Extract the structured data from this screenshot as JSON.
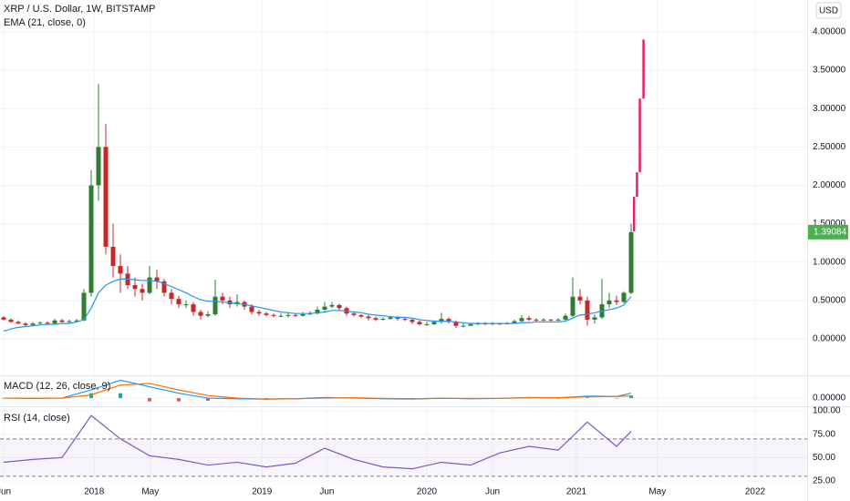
{
  "chart_data": {
    "type": "candlestick",
    "title": "XRP / U.S. Dollar, 1W, BITSTAMP",
    "currency_button": "USD",
    "xlim": [
      -0.5,
      110.125
    ],
    "xticks": [
      {
        "value": 0,
        "label": "Jun"
      },
      {
        "value": 12.4,
        "label": "2018"
      },
      {
        "value": 20.1,
        "label": "May"
      },
      {
        "value": 35.4,
        "label": "2019"
      },
      {
        "value": 44.3,
        "label": "Jun"
      },
      {
        "value": 58,
        "label": "2020"
      },
      {
        "value": 67,
        "label": "Jun"
      },
      {
        "value": 78.5,
        "label": "2021"
      },
      {
        "value": 89.6,
        "label": "May"
      },
      {
        "value": 103,
        "label": "2022"
      }
    ],
    "ylim": [
      -0.475,
      4.415
    ],
    "yticks": [
      {
        "value": 0,
        "label": "0.00000"
      },
      {
        "value": 0.5,
        "label": "0.50000"
      },
      {
        "value": 1,
        "label": "1.00000"
      },
      {
        "value": 1.5,
        "label": "1.50000"
      },
      {
        "value": 2,
        "label": "2.00000"
      },
      {
        "value": 2.5,
        "label": "2.50000"
      },
      {
        "value": 3,
        "label": "3.00000"
      },
      {
        "value": 3.5,
        "label": "3.50000"
      },
      {
        "value": 4,
        "label": "4.00000"
      }
    ],
    "grid": true,
    "up_color": "#2e7d32",
    "down_color": "#c62828",
    "open": [
      0.28,
      0.25,
      0.22,
      0.2,
      0.18,
      0.2,
      0.21,
      0.2,
      0.24,
      0.22,
      0.23,
      0.24,
      0.6,
      2.0,
      2.5,
      1.2,
      0.95,
      0.85,
      0.7,
      0.65,
      0.6,
      0.8,
      0.75,
      0.6,
      0.52,
      0.45,
      0.45,
      0.35,
      0.3,
      0.32,
      0.55,
      0.5,
      0.45,
      0.48,
      0.42,
      0.35,
      0.33,
      0.31,
      0.3,
      0.3,
      0.31,
      0.3,
      0.32,
      0.33,
      0.38,
      0.42,
      0.44,
      0.4,
      0.33,
      0.31,
      0.29,
      0.27,
      0.25,
      0.26,
      0.28,
      0.26,
      0.25,
      0.22,
      0.19,
      0.19,
      0.22,
      0.26,
      0.22,
      0.17,
      0.17,
      0.19,
      0.2,
      0.19,
      0.2,
      0.19,
      0.2,
      0.23,
      0.27,
      0.25,
      0.24,
      0.25,
      0.24,
      0.25,
      0.3,
      0.55,
      0.5,
      0.25,
      0.28,
      0.45,
      0.5,
      0.48,
      0.6
    ],
    "high": [
      0.3,
      0.27,
      0.24,
      0.22,
      0.22,
      0.23,
      0.23,
      0.26,
      0.26,
      0.25,
      0.26,
      0.65,
      2.2,
      3.32,
      2.8,
      1.5,
      1.1,
      0.95,
      0.8,
      0.72,
      0.95,
      0.9,
      0.78,
      0.65,
      0.56,
      0.5,
      0.48,
      0.38,
      0.36,
      0.77,
      0.6,
      0.55,
      0.58,
      0.5,
      0.45,
      0.38,
      0.35,
      0.33,
      0.33,
      0.34,
      0.33,
      0.35,
      0.36,
      0.42,
      0.48,
      0.48,
      0.46,
      0.42,
      0.35,
      0.32,
      0.31,
      0.29,
      0.28,
      0.3,
      0.3,
      0.28,
      0.27,
      0.24,
      0.22,
      0.24,
      0.34,
      0.28,
      0.24,
      0.2,
      0.21,
      0.22,
      0.22,
      0.22,
      0.21,
      0.22,
      0.25,
      0.31,
      0.3,
      0.27,
      0.27,
      0.26,
      0.27,
      0.33,
      0.8,
      0.65,
      0.55,
      0.32,
      0.78,
      0.6,
      0.56,
      0.62,
      1.5
    ],
    "low": [
      0.24,
      0.21,
      0.19,
      0.16,
      0.17,
      0.19,
      0.19,
      0.19,
      0.21,
      0.21,
      0.22,
      0.23,
      0.55,
      1.8,
      1.1,
      0.8,
      0.6,
      0.65,
      0.55,
      0.5,
      0.58,
      0.65,
      0.55,
      0.45,
      0.4,
      0.4,
      0.3,
      0.25,
      0.28,
      0.3,
      0.45,
      0.4,
      0.42,
      0.38,
      0.32,
      0.3,
      0.29,
      0.28,
      0.28,
      0.28,
      0.28,
      0.29,
      0.31,
      0.32,
      0.36,
      0.4,
      0.36,
      0.3,
      0.29,
      0.27,
      0.24,
      0.23,
      0.24,
      0.25,
      0.24,
      0.23,
      0.19,
      0.17,
      0.17,
      0.18,
      0.2,
      0.2,
      0.14,
      0.15,
      0.17,
      0.18,
      0.18,
      0.18,
      0.18,
      0.19,
      0.2,
      0.22,
      0.23,
      0.22,
      0.23,
      0.23,
      0.23,
      0.24,
      0.28,
      0.45,
      0.17,
      0.2,
      0.26,
      0.4,
      0.44,
      0.46,
      0.58
    ],
    "close": [
      0.25,
      0.22,
      0.2,
      0.18,
      0.2,
      0.21,
      0.2,
      0.24,
      0.22,
      0.23,
      0.24,
      0.6,
      2.0,
      2.5,
      1.2,
      0.95,
      0.85,
      0.7,
      0.65,
      0.6,
      0.8,
      0.75,
      0.6,
      0.52,
      0.45,
      0.45,
      0.35,
      0.3,
      0.32,
      0.55,
      0.5,
      0.45,
      0.48,
      0.42,
      0.35,
      0.33,
      0.31,
      0.3,
      0.3,
      0.31,
      0.3,
      0.32,
      0.33,
      0.38,
      0.42,
      0.44,
      0.4,
      0.33,
      0.31,
      0.29,
      0.27,
      0.25,
      0.26,
      0.28,
      0.26,
      0.25,
      0.22,
      0.19,
      0.19,
      0.22,
      0.26,
      0.22,
      0.17,
      0.17,
      0.19,
      0.2,
      0.19,
      0.2,
      0.19,
      0.2,
      0.23,
      0.27,
      0.25,
      0.24,
      0.25,
      0.24,
      0.25,
      0.3,
      0.55,
      0.5,
      0.25,
      0.28,
      0.45,
      0.5,
      0.48,
      0.6,
      1.39084
    ],
    "last_price": 1.39084,
    "last_price_color": "#4caf50",
    "projection": {
      "color": "#e91e63",
      "x": [
        86.4,
        86.8,
        87.2,
        87.7
      ],
      "low": [
        1.4,
        1.85,
        2.17,
        3.13
      ],
      "high": [
        1.85,
        2.17,
        3.13,
        3.9
      ]
    },
    "ema": {
      "name": "EMA (21, close, 0)",
      "color": "#2196f3",
      "values": [
        0.1,
        0.13,
        0.15,
        0.16,
        0.17,
        0.18,
        0.19,
        0.19,
        0.2,
        0.2,
        0.22,
        0.25,
        0.4,
        0.6,
        0.7,
        0.75,
        0.78,
        0.78,
        0.77,
        0.76,
        0.76,
        0.75,
        0.72,
        0.68,
        0.64,
        0.6,
        0.55,
        0.51,
        0.49,
        0.49,
        0.48,
        0.47,
        0.46,
        0.45,
        0.43,
        0.41,
        0.39,
        0.37,
        0.35,
        0.34,
        0.33,
        0.33,
        0.33,
        0.34,
        0.35,
        0.37,
        0.37,
        0.36,
        0.35,
        0.34,
        0.32,
        0.31,
        0.3,
        0.29,
        0.28,
        0.28,
        0.27,
        0.25,
        0.24,
        0.23,
        0.23,
        0.23,
        0.22,
        0.21,
        0.2,
        0.2,
        0.2,
        0.2,
        0.2,
        0.2,
        0.2,
        0.21,
        0.21,
        0.22,
        0.22,
        0.22,
        0.22,
        0.23,
        0.27,
        0.31,
        0.32,
        0.34,
        0.36,
        0.38,
        0.4,
        0.44,
        0.55
      ]
    },
    "macd": {
      "name": "MACD (12, 26, close, 9)",
      "ylim": [
        -0.25,
        0.7
      ],
      "yticks": [
        {
          "value": 0,
          "label": "0.00000"
        }
      ],
      "x": [
        0,
        4,
        8,
        12,
        16,
        20,
        24,
        28,
        32,
        36,
        40,
        44,
        48,
        52,
        56,
        60,
        64,
        68,
        72,
        76,
        80,
        84,
        86
      ],
      "macd_color": "#2196f3",
      "signal_color": "#ff6d00",
      "hist_up_color": "#26a69a",
      "hist_down_color": "#ef5350",
      "macd_values": [
        0,
        -0.01,
        0,
        0.25,
        0.55,
        0.35,
        0.15,
        0,
        -0.02,
        -0.03,
        -0.02,
        0.02,
        0,
        -0.02,
        -0.03,
        0,
        -0.02,
        -0.01,
        0.02,
        0.01,
        0.06,
        0.05,
        0.15
      ],
      "signal_values": [
        0,
        0,
        0,
        0.1,
        0.4,
        0.45,
        0.25,
        0.08,
        0,
        -0.03,
        -0.02,
        0,
        0.01,
        -0.01,
        -0.02,
        -0.01,
        -0.01,
        -0.01,
        0.01,
        0.01,
        0.04,
        0.05,
        0.07
      ],
      "histogram": [
        0,
        -0.01,
        0,
        0.15,
        0.15,
        -0.1,
        -0.1,
        -0.08,
        -0.02,
        0,
        0,
        0.02,
        -0.01,
        -0.01,
        -0.01,
        0.01,
        -0.01,
        0,
        0.01,
        0,
        0.02,
        0,
        0.08
      ]
    },
    "rsi": {
      "name": "RSI (14, close)",
      "ylim": [
        5.5,
        104.9
      ],
      "color": "#7e57c2",
      "band": [
        30,
        70
      ],
      "band_color": "#7e57c2",
      "yticks": [
        {
          "value": 100,
          "label": "100.00"
        },
        {
          "value": 75,
          "label": "75.00"
        },
        {
          "value": 50,
          "label": "50.00"
        },
        {
          "value": 25,
          "label": "25.00"
        }
      ],
      "x": [
        0,
        4,
        8,
        12,
        16,
        20,
        24,
        28,
        32,
        36,
        40,
        44,
        48,
        52,
        56,
        60,
        64,
        68,
        72,
        76,
        80,
        84,
        86
      ],
      "values": [
        45,
        48,
        50,
        95,
        70,
        52,
        48,
        42,
        45,
        40,
        44,
        60,
        48,
        40,
        38,
        45,
        42,
        55,
        62,
        58,
        88,
        62,
        78
      ]
    }
  }
}
